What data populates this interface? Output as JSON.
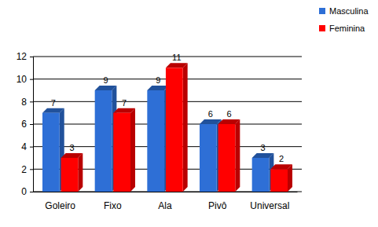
{
  "chart_data": {
    "type": "bar",
    "categories": [
      "Goleiro",
      "Fixo",
      "Ala",
      "Pivô",
      "Universal"
    ],
    "series": [
      {
        "name": "Masculina",
        "color": "#2e6fd6",
        "values": [
          7,
          9,
          9,
          6,
          3
        ]
      },
      {
        "name": "Feminina",
        "color": "#ff0000",
        "values": [
          3,
          7,
          11,
          6,
          2
        ]
      }
    ],
    "ylim": [
      0,
      12
    ],
    "yticks": [
      0,
      2,
      4,
      6,
      8,
      10,
      12
    ],
    "grid": true,
    "legend": "top-right",
    "data_labels": true
  }
}
